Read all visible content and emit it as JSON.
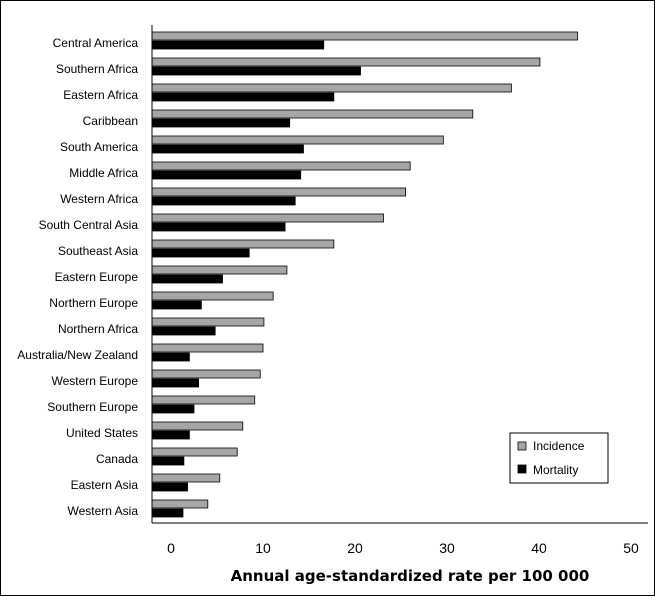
{
  "chart_data": {
    "type": "bar",
    "orientation": "horizontal",
    "categories": [
      "Central America",
      "Southern Africa",
      "Eastern Africa",
      "Caribbean",
      "South America",
      "Middle Africa",
      "Western Africa",
      "South Central Asia",
      "Southeast Asia",
      "Eastern Europe",
      "Northern Europe",
      "Northern Africa",
      "Australia/New Zealand",
      "Western Europe",
      "Southern Europe",
      "United States",
      "Canada",
      "Eastern Asia",
      "Western Asia"
    ],
    "series": [
      {
        "name": "Incidence",
        "color": "#a6a6a6",
        "values": [
          44.2,
          40.1,
          37.0,
          32.8,
          29.6,
          26.0,
          25.5,
          23.1,
          17.7,
          12.6,
          11.1,
          10.1,
          10.0,
          9.7,
          9.1,
          7.8,
          7.2,
          5.3,
          4.0
        ]
      },
      {
        "name": "Mortality",
        "color": "#000000",
        "values": [
          16.6,
          20.6,
          17.7,
          12.9,
          14.4,
          14.1,
          13.5,
          12.4,
          8.5,
          5.6,
          3.3,
          4.8,
          2.0,
          3.0,
          2.5,
          2.0,
          1.4,
          1.8,
          1.3
        ]
      }
    ],
    "x_ticks": [
      0,
      10,
      20,
      30,
      40,
      50
    ],
    "xlim": [
      -2,
      50
    ],
    "xlabel": "Annual age-standardized rate per 100 000",
    "title": "",
    "legend_position": "bottom-right",
    "grid": false
  }
}
